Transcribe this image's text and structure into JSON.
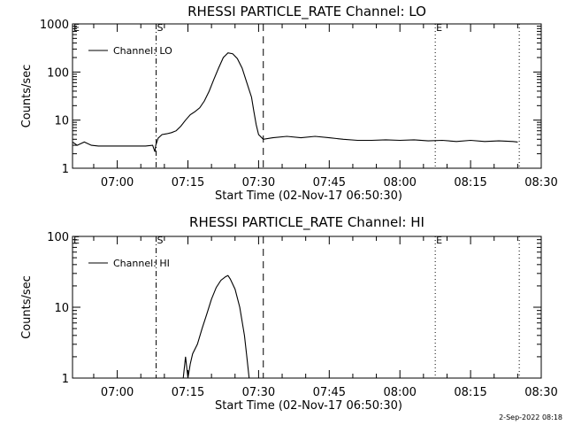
{
  "footer_stamp": "2-Sep-2022 08:18",
  "chart_data": [
    {
      "type": "line",
      "title": "RHESSI PARTICLE_RATE Channel: LO",
      "xlabel": "Start Time (02-Nov-17 06:50:30)",
      "ylabel": "Counts/sec",
      "yscale": "log",
      "xlim": [
        "06:50:30",
        "08:30:00"
      ],
      "ylim": [
        1,
        1000
      ],
      "xticks": [
        "07:00",
        "07:15",
        "07:30",
        "07:45",
        "08:00",
        "08:15",
        "08:30"
      ],
      "yticks": [
        "1",
        "10",
        "100",
        "1000"
      ],
      "grid": false,
      "legend": {
        "position": "top-left"
      },
      "series": [
        {
          "name": "Channel: LO",
          "x": [
            "06:50:30",
            "06:51:30",
            "06:53:00",
            "06:54:30",
            "06:56:00",
            "06:58:00",
            "07:00:00",
            "07:02:00",
            "07:04:00",
            "07:06:00",
            "07:07:30",
            "07:08:00",
            "07:08:10",
            "07:08:40",
            "07:09:30",
            "07:10:30",
            "07:11:30",
            "07:12:30",
            "07:13:30",
            "07:14:30",
            "07:15:30",
            "07:16:30",
            "07:17:30",
            "07:18:30",
            "07:19:30",
            "07:20:30",
            "07:21:30",
            "07:22:30",
            "07:23:30",
            "07:24:30",
            "07:25:30",
            "07:26:30",
            "07:27:30",
            "07:28:30",
            "07:29:00",
            "07:29:30",
            "07:30:00",
            "07:31:00",
            "07:33:00",
            "07:36:00",
            "07:39:00",
            "07:42:00",
            "07:45:00",
            "07:48:00",
            "07:51:00",
            "07:54:00",
            "07:57:00",
            "08:00:00",
            "08:03:00",
            "08:06:00",
            "08:09:00",
            "08:12:00",
            "08:15:00",
            "08:18:00",
            "08:21:00",
            "08:24:00",
            "08:25:00"
          ],
          "y": [
            3.5,
            3.0,
            3.5,
            3.0,
            2.9,
            2.9,
            2.9,
            2.9,
            2.9,
            2.9,
            3.0,
            2.2,
            3.0,
            4.2,
            5.0,
            5.2,
            5.5,
            6.0,
            7.5,
            10.0,
            13.0,
            15.0,
            18.0,
            25.0,
            40.0,
            70.0,
            120.0,
            200.0,
            250.0,
            240.0,
            190.0,
            120.0,
            60.0,
            30.0,
            15.0,
            8.0,
            5.0,
            4.0,
            4.3,
            4.6,
            4.3,
            4.6,
            4.3,
            4.0,
            3.8,
            3.8,
            3.9,
            3.8,
            3.9,
            3.7,
            3.8,
            3.6,
            3.8,
            3.6,
            3.7,
            3.6,
            3.5
          ]
        }
      ],
      "markers": [
        {
          "label": "S",
          "time": "07:08:15",
          "style": "dash-dot"
        },
        {
          "label": "",
          "time": "07:31:00",
          "style": "dashed"
        },
        {
          "label": "E",
          "time": "08:07:30",
          "style": "dotted"
        },
        {
          "label": "",
          "time": "08:25:20",
          "style": "dotted"
        }
      ],
      "corner_label": "E"
    },
    {
      "type": "line",
      "title": "RHESSI PARTICLE_RATE Channel: HI",
      "xlabel": "Start Time (02-Nov-17 06:50:30)",
      "ylabel": "Counts/sec",
      "yscale": "log",
      "xlim": [
        "06:50:30",
        "08:30:00"
      ],
      "ylim": [
        1,
        100
      ],
      "xticks": [
        "07:00",
        "07:15",
        "07:30",
        "07:45",
        "08:00",
        "08:15",
        "08:30"
      ],
      "yticks": [
        "1",
        "10",
        "100"
      ],
      "grid": false,
      "legend": {
        "position": "top-left"
      },
      "series": [
        {
          "name": "Channel: HI",
          "x": [
            "07:14:00",
            "07:14:30",
            "07:15:00",
            "07:15:30",
            "07:16:00",
            "07:17:00",
            "07:18:00",
            "07:19:00",
            "07:20:00",
            "07:21:00",
            "07:22:00",
            "07:23:00",
            "07:23:30",
            "07:24:00",
            "07:25:00",
            "07:26:00",
            "07:27:00",
            "07:27:30",
            "07:28:00"
          ],
          "y": [
            1.0,
            2.0,
            1.0,
            1.6,
            2.2,
            3.0,
            5.0,
            8.0,
            13.0,
            19.0,
            24.0,
            27.0,
            28.0,
            25.0,
            18.0,
            10.0,
            4.0,
            2.0,
            1.0
          ]
        }
      ],
      "markers": [
        {
          "label": "S",
          "time": "07:08:15",
          "style": "dash-dot"
        },
        {
          "label": "",
          "time": "07:31:00",
          "style": "dashed"
        },
        {
          "label": "E",
          "time": "08:07:30",
          "style": "dotted"
        },
        {
          "label": "",
          "time": "08:25:20",
          "style": "dotted"
        }
      ],
      "corner_label": "E"
    }
  ]
}
